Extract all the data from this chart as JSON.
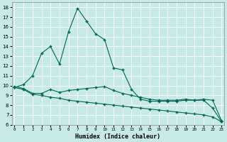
{
  "xlabel": "Humidex (Indice chaleur)",
  "bg_color": "#c8eae6",
  "grid_color": "#ffffff",
  "line_color": "#006655",
  "xlim": [
    0,
    23
  ],
  "ylim": [
    6,
    18.5
  ],
  "yticks": [
    6,
    7,
    8,
    9,
    10,
    11,
    12,
    13,
    14,
    15,
    16,
    17,
    18
  ],
  "xticks": [
    0,
    1,
    2,
    3,
    4,
    5,
    6,
    7,
    8,
    9,
    10,
    11,
    12,
    13,
    14,
    15,
    16,
    17,
    18,
    19,
    20,
    21,
    22,
    23
  ],
  "line1_x": [
    0,
    1,
    2,
    3,
    4,
    5,
    6,
    7,
    8,
    9,
    10,
    11,
    12,
    13,
    14,
    15,
    16,
    17,
    18,
    19,
    20,
    21,
    22,
    23
  ],
  "line1_y": [
    9.8,
    10.1,
    11.0,
    13.3,
    14.0,
    12.2,
    15.5,
    17.9,
    16.6,
    15.3,
    14.7,
    11.8,
    11.6,
    9.6,
    8.6,
    8.4,
    8.4,
    8.4,
    8.4,
    8.5,
    8.5,
    8.5,
    7.7,
    6.3
  ],
  "line2_x": [
    0,
    1,
    2,
    3,
    4,
    5,
    6,
    7,
    8,
    9,
    10,
    11,
    12,
    13,
    14,
    15,
    16,
    17,
    18,
    19,
    20,
    21,
    22,
    23
  ],
  "line2_y": [
    9.9,
    9.7,
    9.2,
    9.2,
    9.6,
    9.3,
    9.5,
    9.6,
    9.7,
    9.8,
    9.9,
    9.5,
    9.2,
    9.0,
    8.8,
    8.6,
    8.5,
    8.5,
    8.5,
    8.6,
    8.5,
    8.6,
    8.5,
    6.4
  ],
  "line3_x": [
    0,
    1,
    2,
    3,
    4,
    5,
    6,
    7,
    8,
    9,
    10,
    11,
    12,
    13,
    14,
    15,
    16,
    17,
    18,
    19,
    20,
    21,
    22,
    23
  ],
  "line3_y": [
    9.8,
    9.6,
    9.1,
    9.0,
    8.8,
    8.7,
    8.5,
    8.4,
    8.3,
    8.2,
    8.1,
    8.0,
    7.9,
    7.8,
    7.7,
    7.6,
    7.5,
    7.4,
    7.3,
    7.2,
    7.1,
    7.0,
    6.8,
    6.3
  ]
}
